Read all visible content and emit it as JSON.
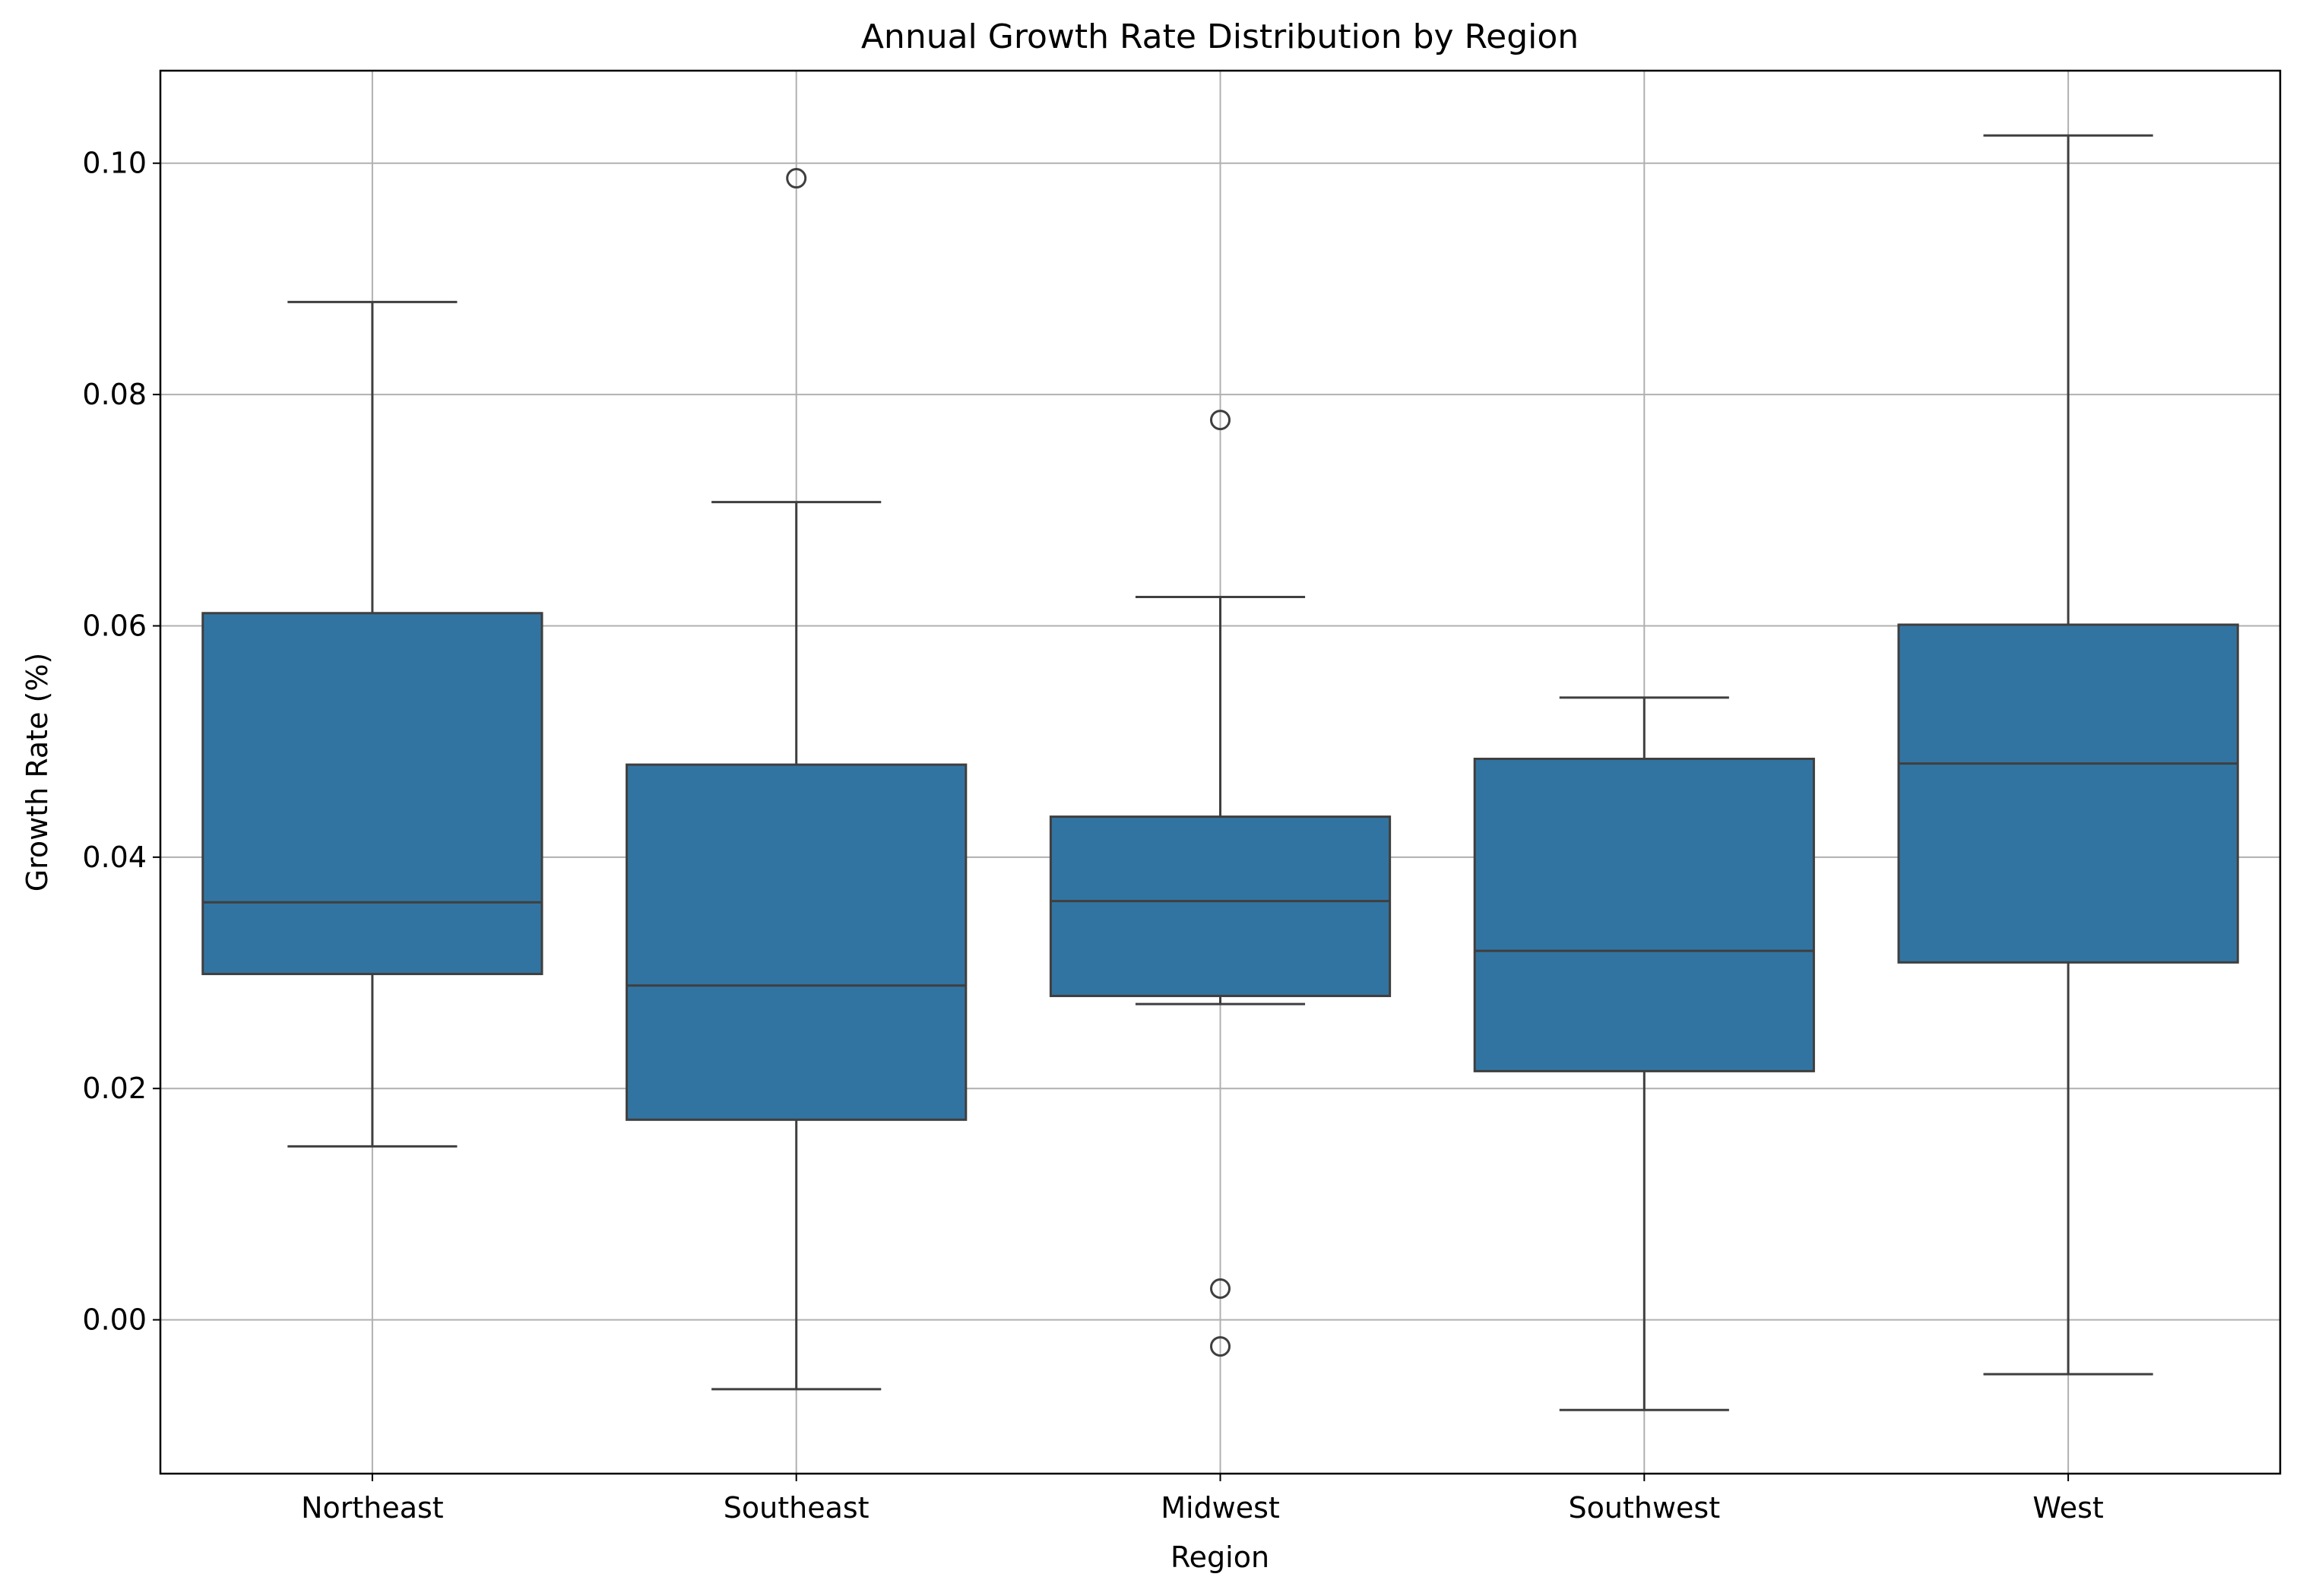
{
  "chart_data": {
    "type": "box",
    "title": "Annual Growth Rate Distribution by Region",
    "xlabel": "Region",
    "ylabel": "Growth Rate (%)",
    "categories": [
      "Northeast",
      "Southeast",
      "Midwest",
      "Southwest",
      "West"
    ],
    "y_ticks": [
      "0.00",
      "0.02",
      "0.04",
      "0.06",
      "0.08",
      "0.10"
    ],
    "ylim": [
      -0.0133,
      0.108
    ],
    "grid": true,
    "box_color": "#3274a1",
    "edge_color": "#3f3f3f",
    "grid_color": "#b0b0b0",
    "boxes": [
      {
        "category": "Northeast",
        "whisker_low": 0.015,
        "q1": 0.0299,
        "median": 0.0361,
        "q3": 0.0611,
        "whisker_high": 0.088,
        "outliers": []
      },
      {
        "category": "Southeast",
        "whisker_low": -0.006,
        "q1": 0.0173,
        "median": 0.0289,
        "q3": 0.048,
        "whisker_high": 0.0707,
        "outliers": [
          0.0987
        ]
      },
      {
        "category": "Midwest",
        "whisker_low": 0.0273,
        "q1": 0.028,
        "median": 0.0362,
        "q3": 0.0435,
        "whisker_high": 0.0625,
        "outliers": [
          0.0778,
          0.0027,
          -0.0023
        ]
      },
      {
        "category": "Southwest",
        "whisker_low": -0.0078,
        "q1": 0.0215,
        "median": 0.0319,
        "q3": 0.0485,
        "whisker_high": 0.0538,
        "outliers": []
      },
      {
        "category": "West",
        "whisker_low": -0.0047,
        "q1": 0.0309,
        "median": 0.0481,
        "q3": 0.0601,
        "whisker_high": 0.1024,
        "outliers": []
      }
    ]
  }
}
